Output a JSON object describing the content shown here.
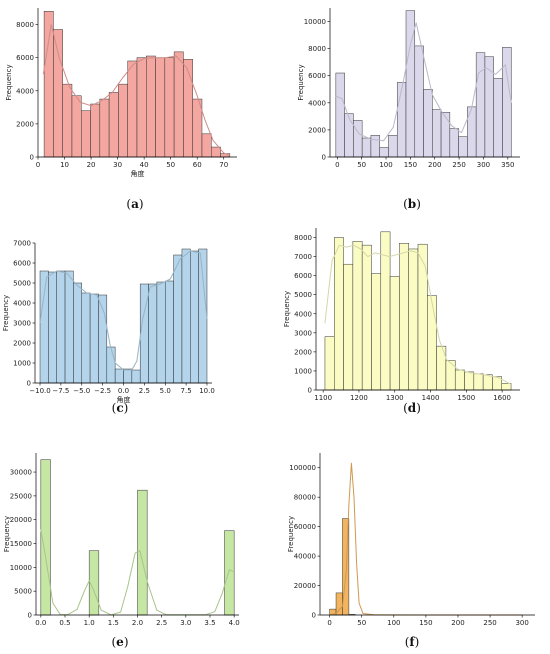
{
  "chart_data": [
    {
      "type": "bar",
      "caption_letter": "a",
      "ylabel": "Frequency",
      "xlabel": "角度",
      "color": "#f4a6a0",
      "xlim": [
        0,
        75
      ],
      "ylim": [
        0,
        9000
      ],
      "xticks": [
        0,
        10,
        20,
        30,
        40,
        50,
        60,
        70
      ],
      "yticks": [
        0,
        2000,
        4000,
        6000,
        8000
      ],
      "bin_edges": [
        2.3,
        5.8,
        9.3,
        12.8,
        16.3,
        19.8,
        23.3,
        26.8,
        30.3,
        33.8,
        37.3,
        40.8,
        44.3,
        47.8,
        51.3,
        54.8,
        58.3,
        61.8,
        65.3,
        68.8,
        72.3
      ],
      "values": [
        8800,
        7700,
        4400,
        3700,
        2800,
        3200,
        3500,
        3900,
        4400,
        5800,
        6000,
        6100,
        6000,
        6000,
        6350,
        5900,
        3500,
        1400,
        600,
        200
      ],
      "kde": [
        [
          2,
          5000
        ],
        [
          5,
          8000
        ],
        [
          8,
          6000
        ],
        [
          12,
          4200
        ],
        [
          16,
          3300
        ],
        [
          20,
          3100
        ],
        [
          24,
          3400
        ],
        [
          28,
          3900
        ],
        [
          32,
          4800
        ],
        [
          36,
          5600
        ],
        [
          40,
          5950
        ],
        [
          44,
          6000
        ],
        [
          48,
          6000
        ],
        [
          52,
          6100
        ],
        [
          56,
          5400
        ],
        [
          60,
          3700
        ],
        [
          63,
          2200
        ],
        [
          66,
          1000
        ],
        [
          70,
          250
        ],
        [
          72,
          100
        ]
      ]
    },
    {
      "type": "bar",
      "caption_letter": "b",
      "ylabel": "Frequency",
      "xlabel": "",
      "color": "#dcd8ec",
      "xlim": [
        -15,
        375
      ],
      "ylim": [
        0,
        11000
      ],
      "xticks": [
        0,
        50,
        100,
        150,
        200,
        250,
        300,
        350
      ],
      "yticks": [
        0,
        2000,
        4000,
        6000,
        8000,
        10000
      ],
      "bin_edges": [
        -3,
        15,
        33,
        51,
        69,
        87,
        105,
        123,
        141,
        159,
        177,
        195,
        213,
        231,
        249,
        267,
        285,
        303,
        321,
        339,
        357
      ],
      "values": [
        6200,
        3200,
        2700,
        1400,
        1600,
        700,
        1600,
        5500,
        10800,
        8200,
        5000,
        3500,
        3300,
        2100,
        1500,
        3700,
        7700,
        7400,
        5800,
        8100
      ],
      "kde": [
        [
          -3,
          4500
        ],
        [
          10,
          4300
        ],
        [
          25,
          2800
        ],
        [
          45,
          1700
        ],
        [
          70,
          1300
        ],
        [
          95,
          1200
        ],
        [
          115,
          2200
        ],
        [
          135,
          5500
        ],
        [
          150,
          8300
        ],
        [
          162,
          9900
        ],
        [
          178,
          7300
        ],
        [
          195,
          4600
        ],
        [
          215,
          3300
        ],
        [
          235,
          2300
        ],
        [
          255,
          1800
        ],
        [
          275,
          3500
        ],
        [
          290,
          6200
        ],
        [
          305,
          6600
        ],
        [
          325,
          6100
        ],
        [
          345,
          6800
        ],
        [
          357,
          4000
        ]
      ]
    },
    {
      "type": "bar",
      "caption_letter": "c",
      "ylabel": "Frequency",
      "xlabel": "角度",
      "color": "#b3d4ea",
      "xlim": [
        -10.6,
        10.6
      ],
      "ylim": [
        0,
        7000
      ],
      "xticks": [
        -10,
        -7.5,
        -5,
        -2.5,
        0,
        2.5,
        5,
        7.5,
        10
      ],
      "ytick_labels": [
        "0",
        "1000",
        "2000",
        "3000",
        "4000",
        "5000",
        "6000",
        "7000"
      ],
      "xtick_labels": [
        "−10.0",
        "−7.5",
        "−5.0",
        "−2.5",
        "0.0",
        "2.5",
        "5.0",
        "7.5",
        "10.0"
      ],
      "yticks": [
        0,
        1000,
        2000,
        3000,
        4000,
        5000,
        6000,
        7000
      ],
      "bin_edges": [
        -10,
        -9,
        -8,
        -7,
        -6,
        -5,
        -4,
        -3,
        -2,
        -1,
        0,
        1,
        2,
        3,
        4,
        5,
        6,
        7,
        8,
        9,
        10
      ],
      "values": [
        5600,
        5550,
        5600,
        5600,
        5000,
        4500,
        4450,
        4400,
        1800,
        700,
        700,
        650,
        4950,
        4950,
        5050,
        5100,
        6400,
        6700,
        6600,
        6700
      ],
      "kde": [
        [
          -10,
          3000
        ],
        [
          -9.2,
          5300
        ],
        [
          -8,
          5600
        ],
        [
          -6.8,
          5500
        ],
        [
          -5.6,
          4900
        ],
        [
          -4.4,
          4500
        ],
        [
          -3.2,
          4400
        ],
        [
          -2.3,
          3500
        ],
        [
          -1.6,
          1900
        ],
        [
          -1,
          1000
        ],
        [
          0,
          650
        ],
        [
          1,
          650
        ],
        [
          1.6,
          1100
        ],
        [
          2.3,
          3200
        ],
        [
          3.2,
          4800
        ],
        [
          4.4,
          4950
        ],
        [
          5.6,
          5200
        ],
        [
          6.8,
          6200
        ],
        [
          8,
          6600
        ],
        [
          9.2,
          6500
        ],
        [
          10,
          3200
        ]
      ]
    },
    {
      "type": "bar",
      "caption_letter": "d",
      "ylabel": "Frequency",
      "xlabel": "",
      "color": "#fafcc4",
      "xlim": [
        1080,
        1650
      ],
      "ylim": [
        0,
        8500
      ],
      "xticks": [
        1100,
        1200,
        1300,
        1400,
        1500,
        1600
      ],
      "yticks": [
        0,
        1000,
        2000,
        3000,
        4000,
        5000,
        6000,
        7000,
        8000
      ],
      "bin_edges": [
        1105,
        1131,
        1157,
        1183,
        1209,
        1235,
        1261,
        1287,
        1313,
        1339,
        1365,
        1391,
        1417,
        1443,
        1469,
        1495,
        1521,
        1547,
        1573,
        1599,
        1625
      ],
      "values": [
        2800,
        8000,
        6600,
        7800,
        7600,
        6100,
        8300,
        5950,
        7700,
        7400,
        7650,
        4950,
        2300,
        1550,
        1050,
        950,
        850,
        800,
        700,
        350
      ],
      "kde": [
        [
          1105,
          3500
        ],
        [
          1125,
          6800
        ],
        [
          1145,
          7600
        ],
        [
          1165,
          7500
        ],
        [
          1185,
          7600
        ],
        [
          1205,
          7400
        ],
        [
          1225,
          7000
        ],
        [
          1245,
          7200
        ],
        [
          1265,
          7100
        ],
        [
          1285,
          7000
        ],
        [
          1305,
          7100
        ],
        [
          1325,
          7200
        ],
        [
          1345,
          7300
        ],
        [
          1365,
          7200
        ],
        [
          1385,
          6500
        ],
        [
          1405,
          4500
        ],
        [
          1425,
          2600
        ],
        [
          1445,
          1600
        ],
        [
          1475,
          1100
        ],
        [
          1510,
          900
        ],
        [
          1550,
          800
        ],
        [
          1590,
          650
        ],
        [
          1625,
          300
        ]
      ]
    },
    {
      "type": "bar",
      "caption_letter": "e",
      "ylabel": "Frequency",
      "xlabel": "",
      "color": "#c6e6a4",
      "xlim": [
        -0.1,
        4.1
      ],
      "ylim": [
        0,
        34000
      ],
      "xticks": [
        0,
        0.5,
        1,
        1.5,
        2,
        2.5,
        3,
        3.5,
        4
      ],
      "xtick_labels": [
        "0.0",
        "0.5",
        "1.0",
        "1.5",
        "2.0",
        "2.5",
        "3.0",
        "3.5",
        "4.0"
      ],
      "yticks": [
        0,
        5000,
        10000,
        15000,
        20000,
        25000,
        30000
      ],
      "bin_edges": [
        0,
        0.2,
        0.4,
        0.6,
        0.8,
        1,
        1.2,
        1.4,
        1.6,
        1.8,
        2,
        2.2,
        2.4,
        2.6,
        2.8,
        3,
        3.2,
        3.4,
        3.6,
        3.8,
        4
      ],
      "values": [
        32600,
        0,
        0,
        0,
        0,
        13500,
        0,
        0,
        0,
        0,
        26200,
        0,
        0,
        0,
        0,
        0,
        0,
        0,
        0,
        17700
      ],
      "kde": [
        [
          0,
          18000
        ],
        [
          0.1,
          12000
        ],
        [
          0.25,
          2500
        ],
        [
          0.4,
          100
        ],
        [
          0.55,
          50
        ],
        [
          0.75,
          1200
        ],
        [
          0.9,
          5000
        ],
        [
          1,
          7200
        ],
        [
          1.1,
          5000
        ],
        [
          1.25,
          1000
        ],
        [
          1.45,
          50
        ],
        [
          1.65,
          600
        ],
        [
          1.8,
          6000
        ],
        [
          1.95,
          13000
        ],
        [
          2.05,
          13500
        ],
        [
          2.2,
          7000
        ],
        [
          2.4,
          1000
        ],
        [
          2.6,
          50
        ],
        [
          3,
          50
        ],
        [
          3.4,
          50
        ],
        [
          3.6,
          700
        ],
        [
          3.75,
          4500
        ],
        [
          3.9,
          9500
        ],
        [
          4,
          9000
        ]
      ]
    },
    {
      "type": "bar",
      "caption_letter": "f",
      "ylabel": "Frequency",
      "xlabel": "",
      "color": "#f3b45f",
      "xlim": [
        -15,
        320
      ],
      "ylim": [
        0,
        110000
      ],
      "xticks": [
        0,
        50,
        100,
        150,
        200,
        250,
        300
      ],
      "yticks": [
        0,
        20000,
        40000,
        60000,
        80000,
        100000
      ],
      "bin_edges": [
        0,
        10,
        20,
        30,
        40,
        50,
        60,
        70,
        80,
        90,
        100,
        110,
        120,
        130,
        140,
        150,
        160,
        170,
        180,
        190,
        200,
        210,
        220,
        230,
        240,
        250,
        260,
        270,
        280,
        290,
        300
      ],
      "values": [
        4000,
        15000,
        65500,
        400,
        100,
        50,
        30,
        20,
        10,
        10,
        10,
        5,
        5,
        5,
        5,
        5,
        5,
        5,
        5,
        5,
        5,
        5,
        5,
        5,
        5,
        5,
        5,
        5,
        5,
        5
      ],
      "kde": [
        [
          0,
          200
        ],
        [
          10,
          1000
        ],
        [
          20,
          6000
        ],
        [
          26,
          30000
        ],
        [
          30,
          75000
        ],
        [
          34,
          103000
        ],
        [
          38,
          80000
        ],
        [
          42,
          35000
        ],
        [
          46,
          8000
        ],
        [
          52,
          1000
        ],
        [
          70,
          100
        ],
        [
          150,
          20
        ],
        [
          300,
          10
        ]
      ]
    }
  ]
}
